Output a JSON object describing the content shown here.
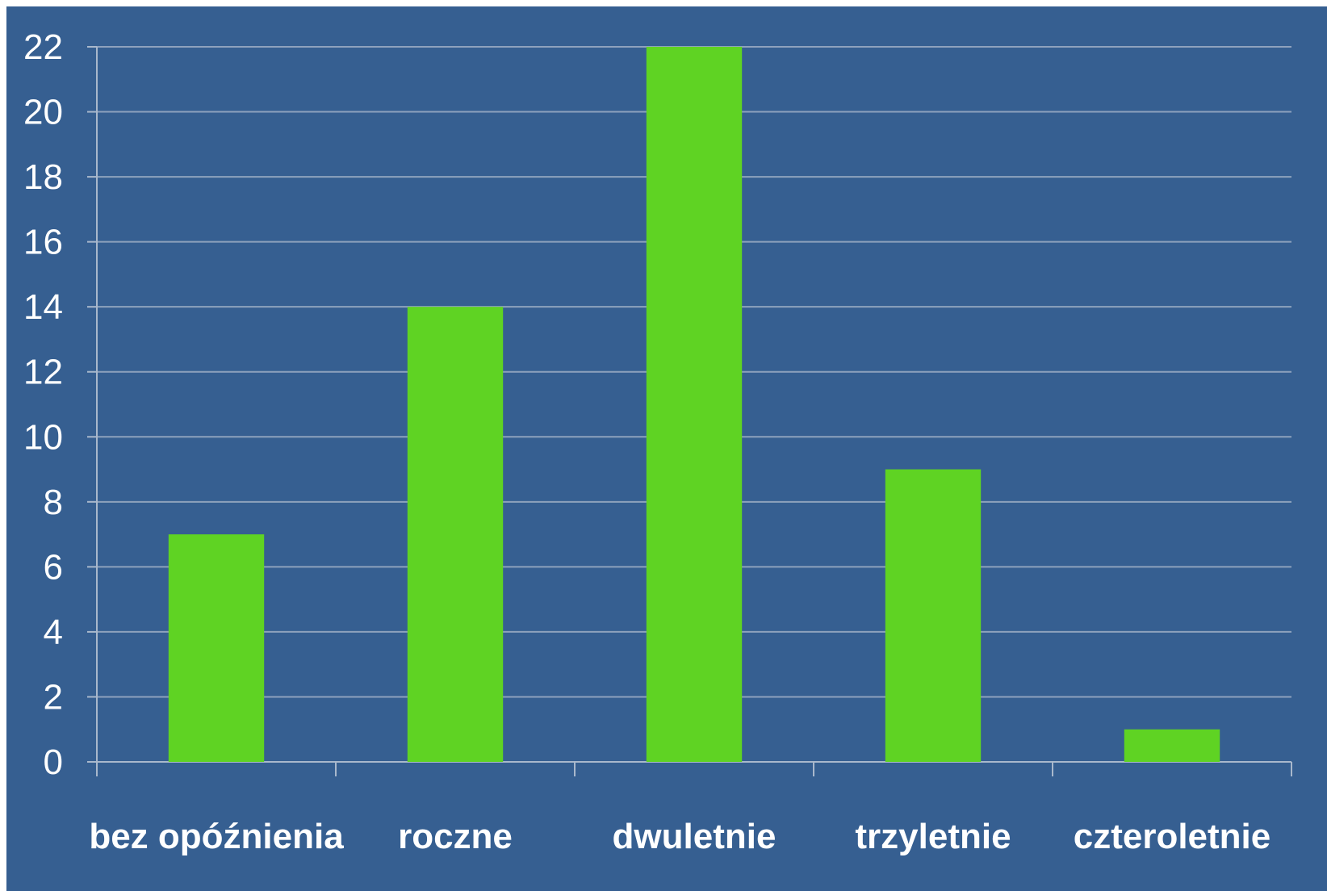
{
  "colors": {
    "background": "#365F91",
    "bar": "#5FD323",
    "grid": "#8EA2BD",
    "axis": "#A9B8CC",
    "text": "#FFFFFF"
  },
  "chart_data": {
    "type": "bar",
    "title": "",
    "xlabel": "",
    "ylabel": "",
    "categories": [
      "bez opóźnienia",
      "roczne",
      "dwuletnie",
      "trzyletnie",
      "czteroletnie"
    ],
    "values": [
      7,
      14,
      22,
      9,
      1
    ],
    "ylim": [
      0,
      22
    ],
    "yticks": [
      0,
      2,
      4,
      6,
      8,
      10,
      12,
      14,
      16,
      18,
      20,
      22
    ],
    "ytick_labels": [
      "0",
      "2",
      "4",
      "6",
      "8",
      "10",
      "12",
      "14",
      "16",
      "18",
      "20",
      "22"
    ],
    "grid": true,
    "legend": "none"
  }
}
